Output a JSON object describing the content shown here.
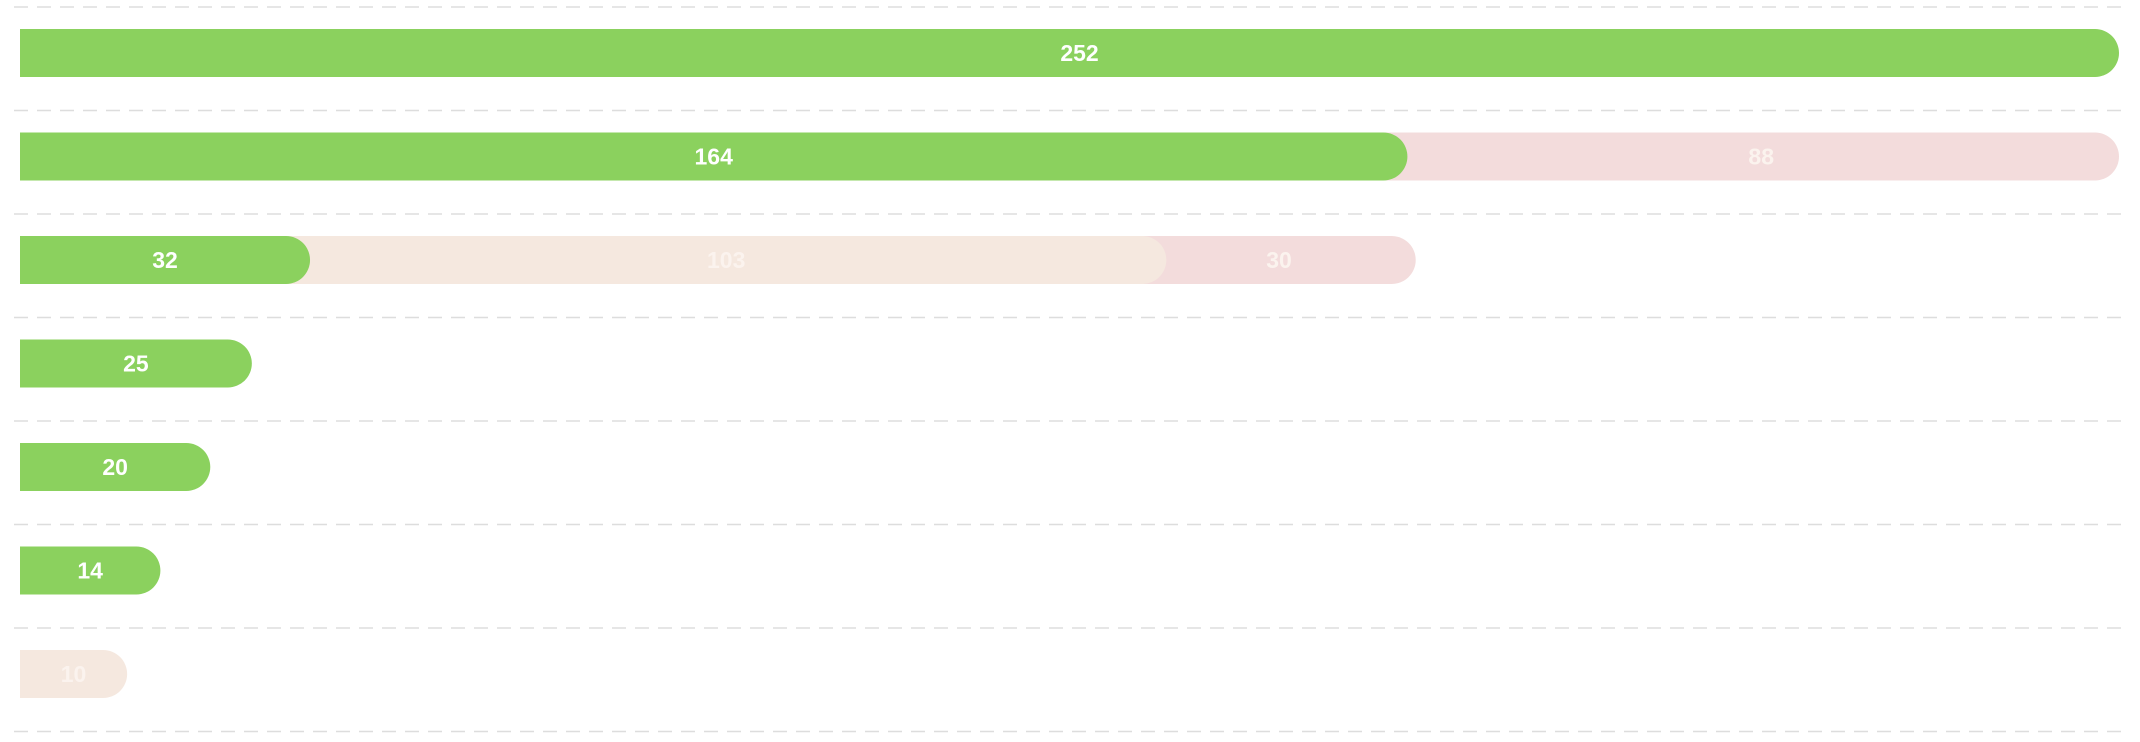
{
  "colors": {
    "green": "#8bd15e",
    "peach": "#f5e8df",
    "pink": "#f3dcdc",
    "grid": "#dddddd",
    "label_on_green": "#ffffff",
    "label_on_light": "#fbf3ee"
  },
  "chart_data": {
    "type": "bar",
    "orientation": "horizontal",
    "stacked": true,
    "grid": true,
    "bar_style": "rounded",
    "categories": [
      "",
      "",
      "",
      "",
      "",
      "",
      ""
    ],
    "series": [
      {
        "color": "#8bd15e",
        "values": [
          252,
          164,
          32,
          25,
          20,
          14,
          0
        ]
      },
      {
        "color": "#f5e8df",
        "values": [
          0,
          0,
          103,
          0,
          0,
          0,
          10
        ]
      },
      {
        "color": "#f3dcdc",
        "values": [
          0,
          88,
          30,
          0,
          0,
          0,
          0
        ]
      }
    ],
    "data_labels": [
      [
        "252",
        "",
        ""
      ],
      [
        "164",
        "",
        "88"
      ],
      [
        "32",
        "103",
        "30"
      ],
      [
        "25",
        "",
        ""
      ],
      [
        "20",
        "",
        ""
      ],
      [
        "14",
        "",
        ""
      ],
      [
        "",
        "10",
        ""
      ]
    ],
    "xlim": [
      0,
      252
    ]
  }
}
